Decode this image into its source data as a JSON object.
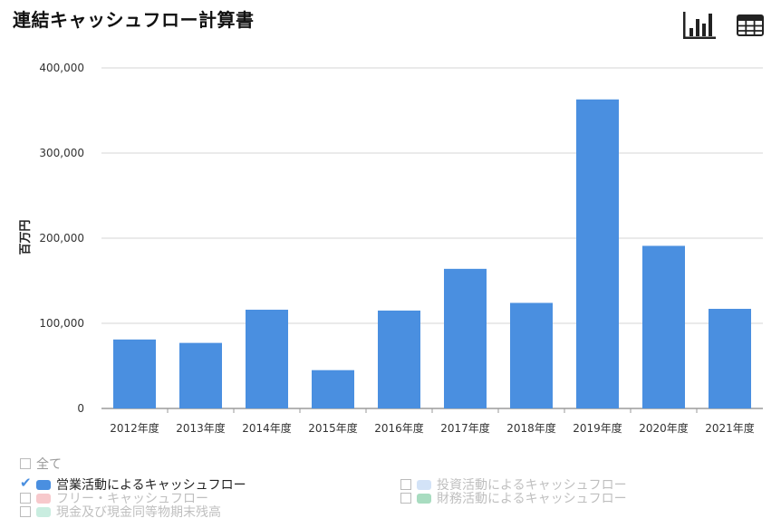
{
  "header": {
    "title": "連結キャッシュフロー計算書"
  },
  "toolbar": {
    "chart_icon": "bar-chart-icon",
    "table_icon": "table-grid-icon"
  },
  "chart_data": {
    "type": "bar",
    "title": "連結キャッシュフロー計算書",
    "ylabel": "百万円",
    "xlabel": "",
    "categories": [
      "2012年度",
      "2013年度",
      "2014年度",
      "2015年度",
      "2016年度",
      "2017年度",
      "2018年度",
      "2019年度",
      "2020年度",
      "2021年度"
    ],
    "series": [
      {
        "name": "営業活動によるキャッシュフロー",
        "color": "#4a8fe0",
        "values": [
          81000,
          77000,
          116000,
          45000,
          115000,
          164000,
          124000,
          363000,
          191000,
          117000
        ]
      }
    ],
    "ylim": [
      0,
      400000
    ],
    "yticks": [
      0,
      100000,
      200000,
      300000,
      400000
    ],
    "ytick_labels": [
      "0",
      "100,000",
      "200,000",
      "300,000",
      "400,000"
    ],
    "grid": true
  },
  "legend": {
    "all_label": "全て",
    "items": [
      {
        "label": "営業活動によるキャッシュフロー",
        "color": "#4a8fe0",
        "checked": true
      },
      {
        "label": "投資活動によるキャッシュフロー",
        "color": "#d3e3f7",
        "checked": false
      },
      {
        "label": "フリー・キャッシュフロー",
        "color": "#f7c9cc",
        "checked": false
      },
      {
        "label": "財務活動によるキャッシュフロー",
        "color": "#a8dcc0",
        "checked": false
      },
      {
        "label": "現金及び現金同等物期末残高",
        "color": "#c9ede0",
        "checked": false
      }
    ]
  }
}
